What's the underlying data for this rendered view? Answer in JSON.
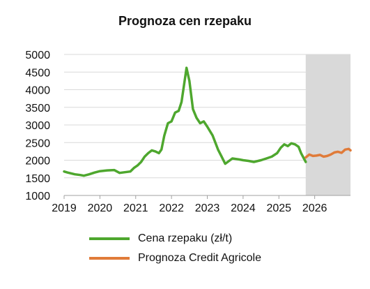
{
  "chart_data": {
    "type": "line",
    "title": "Prognoza cen rzepaku",
    "xlabel": "",
    "ylabel": "",
    "ylim": [
      1000,
      5000
    ],
    "xlim": [
      2019.0,
      2027.0
    ],
    "yticks": [
      1000,
      1500,
      2000,
      2500,
      3000,
      3500,
      4000,
      4500,
      5000
    ],
    "xticks": [
      2019,
      2020,
      2021,
      2022,
      2023,
      2024,
      2025,
      2026
    ],
    "forecast_region": [
      2025.75,
      2027.0
    ],
    "grid": "horizontal",
    "legend_position": "bottom",
    "colors": {
      "history": "#4ea72e",
      "forecast": "#e07b39",
      "forecast_shade": "#d9d9d9",
      "grid": "#d9d9d9"
    },
    "series": [
      {
        "name": "Cena rzepaku (zł/t)",
        "x": [
          2019.0,
          2019.1,
          2019.3,
          2019.45,
          2019.55,
          2019.7,
          2019.85,
          2020.0,
          2020.2,
          2020.4,
          2020.55,
          2020.7,
          2020.85,
          2020.95,
          2021.05,
          2021.15,
          2021.25,
          2021.35,
          2021.45,
          2021.55,
          2021.65,
          2021.72,
          2021.8,
          2021.9,
          2022.0,
          2022.1,
          2022.2,
          2022.28,
          2022.36,
          2022.42,
          2022.5,
          2022.6,
          2022.7,
          2022.8,
          2022.9,
          2023.0,
          2023.15,
          2023.3,
          2023.4,
          2023.5,
          2023.7,
          2023.9,
          2024.0,
          2024.15,
          2024.3,
          2024.5,
          2024.65,
          2024.8,
          2024.95,
          2025.05,
          2025.15,
          2025.25,
          2025.35,
          2025.45,
          2025.55,
          2025.62,
          2025.75
        ],
        "y": [
          1680,
          1650,
          1600,
          1580,
          1560,
          1600,
          1650,
          1690,
          1710,
          1720,
          1640,
          1660,
          1680,
          1780,
          1850,
          1950,
          2100,
          2200,
          2280,
          2250,
          2200,
          2300,
          2700,
          3050,
          3100,
          3350,
          3400,
          3650,
          4200,
          4620,
          4250,
          3450,
          3200,
          3050,
          3100,
          2950,
          2700,
          2300,
          2100,
          1900,
          2050,
          2020,
          2000,
          1980,
          1950,
          2000,
          2050,
          2100,
          2200,
          2350,
          2450,
          2400,
          2480,
          2450,
          2380,
          2200,
          1950
        ]
      },
      {
        "name": "Prognoza Credit Agricole",
        "x": [
          2025.75,
          2025.85,
          2025.95,
          2026.05,
          2026.15,
          2026.25,
          2026.35,
          2026.45,
          2026.55,
          2026.65,
          2026.75,
          2026.85,
          2026.95,
          2027.0
        ],
        "y": [
          2080,
          2160,
          2120,
          2130,
          2150,
          2100,
          2120,
          2160,
          2220,
          2240,
          2210,
          2300,
          2320,
          2280
        ]
      }
    ]
  }
}
